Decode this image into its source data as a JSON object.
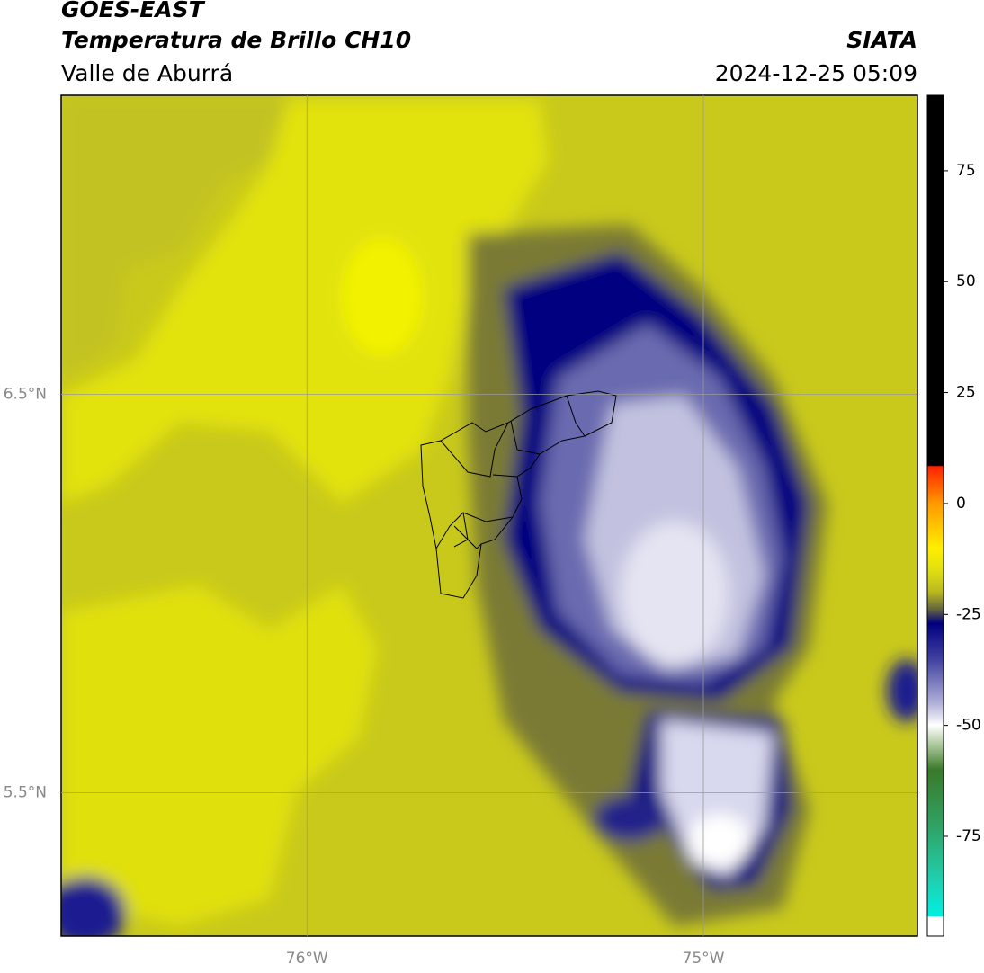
{
  "header": {
    "title": "GOES-EAST",
    "subtitle": "Temperatura de Brillo CH10",
    "source": "SIATA",
    "region": "Valle de Aburrá",
    "datetime": "2024-12-25 05:09"
  },
  "map": {
    "xlim": [
      -76.62,
      -74.46
    ],
    "ylim": [
      5.14,
      7.25
    ],
    "xticks": [
      {
        "value": -76,
        "label": "76°W"
      },
      {
        "value": -75,
        "label": "75°W"
      }
    ],
    "yticks": [
      {
        "value": 6.5,
        "label": "6.5°N"
      },
      {
        "value": 5.5,
        "label": "5.5°N"
      }
    ],
    "grid": true
  },
  "colorbar": {
    "lim": [
      -97.5,
      92
    ],
    "ticks": [
      75,
      50,
      25,
      0,
      -25,
      -50,
      -75
    ],
    "colorscale": [
      {
        "value": 92,
        "color": "#000000"
      },
      {
        "value": 8.5,
        "color": "#000000"
      },
      {
        "value": 8.4,
        "color": "#ff2000"
      },
      {
        "value": 0,
        "color": "#ff9900"
      },
      {
        "value": -10,
        "color": "#ffee00"
      },
      {
        "value": -15,
        "color": "#e0e010"
      },
      {
        "value": -20,
        "color": "#b8b820"
      },
      {
        "value": -24,
        "color": "#606040"
      },
      {
        "value": -27,
        "color": "#000080"
      },
      {
        "value": -35,
        "color": "#4040a0"
      },
      {
        "value": -45,
        "color": "#b0b0d8"
      },
      {
        "value": -50,
        "color": "#ffffff"
      },
      {
        "value": -55,
        "color": "#a0c090"
      },
      {
        "value": -60,
        "color": "#3a7a2a"
      },
      {
        "value": -72,
        "color": "#30a060"
      },
      {
        "value": -85,
        "color": "#20d0b0"
      },
      {
        "value": -93,
        "color": "#00f0e0"
      },
      {
        "value": -93.1,
        "color": "#ffffff"
      },
      {
        "value": -97.5,
        "color": "#ffffff"
      }
    ]
  }
}
